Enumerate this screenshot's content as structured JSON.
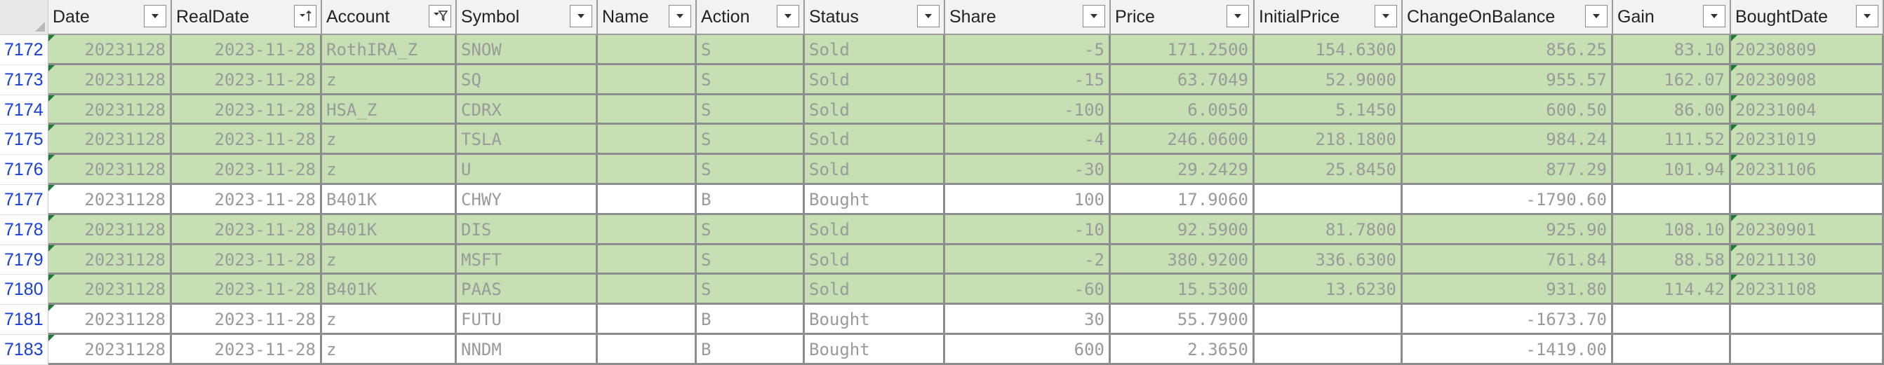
{
  "columns": [
    {
      "label": "Date",
      "filter": "dropdown"
    },
    {
      "label": "RealDate",
      "filter": "sort-asc"
    },
    {
      "label": "Account",
      "filter": "filtered"
    },
    {
      "label": "Symbol",
      "filter": "dropdown"
    },
    {
      "label": "Name",
      "filter": "dropdown"
    },
    {
      "label": "Action",
      "filter": "dropdown"
    },
    {
      "label": "Status",
      "filter": "dropdown"
    },
    {
      "label": "Share",
      "filter": "dropdown"
    },
    {
      "label": "Price",
      "filter": "dropdown"
    },
    {
      "label": "InitialPrice",
      "filter": "dropdown"
    },
    {
      "label": "ChangeOnBalance",
      "filter": "dropdown"
    },
    {
      "label": "Gain",
      "filter": "dropdown"
    },
    {
      "label": "BoughtDate",
      "filter": "dropdown"
    }
  ],
  "rows": [
    {
      "num": "7172",
      "fill": "green",
      "cells": [
        "20231128",
        "2023-11-28",
        "RothIRA_Z",
        "SNOW",
        "",
        "S",
        "Sold",
        "-5",
        "171.2500",
        "154.6300",
        "856.25",
        "83.10",
        "20230809"
      ]
    },
    {
      "num": "7173",
      "fill": "green",
      "cells": [
        "20231128",
        "2023-11-28",
        "z",
        "SQ",
        "",
        "S",
        "Sold",
        "-15",
        "63.7049",
        "52.9000",
        "955.57",
        "162.07",
        "20230908"
      ]
    },
    {
      "num": "7174",
      "fill": "green",
      "cells": [
        "20231128",
        "2023-11-28",
        "HSA_Z",
        "CDRX",
        "",
        "S",
        "Sold",
        "-100",
        "6.0050",
        "5.1450",
        "600.50",
        "86.00",
        "20231004"
      ]
    },
    {
      "num": "7175",
      "fill": "green",
      "cells": [
        "20231128",
        "2023-11-28",
        "z",
        "TSLA",
        "",
        "S",
        "Sold",
        "-4",
        "246.0600",
        "218.1800",
        "984.24",
        "111.52",
        "20231019"
      ]
    },
    {
      "num": "7176",
      "fill": "green",
      "cells": [
        "20231128",
        "2023-11-28",
        "z",
        "U",
        "",
        "S",
        "Sold",
        "-30",
        "29.2429",
        "25.8450",
        "877.29",
        "101.94",
        "20231106"
      ]
    },
    {
      "num": "7177",
      "fill": "white",
      "cells": [
        "20231128",
        "2023-11-28",
        "B401K",
        "CHWY",
        "",
        "B",
        "Bought",
        "100",
        "17.9060",
        "",
        "-1790.60",
        "",
        ""
      ]
    },
    {
      "num": "7178",
      "fill": "green",
      "cells": [
        "20231128",
        "2023-11-28",
        "B401K",
        "DIS",
        "",
        "S",
        "Sold",
        "-10",
        "92.5900",
        "81.7800",
        "925.90",
        "108.10",
        "20230901"
      ]
    },
    {
      "num": "7179",
      "fill": "green",
      "cells": [
        "20231128",
        "2023-11-28",
        "z",
        "MSFT",
        "",
        "S",
        "Sold",
        "-2",
        "380.9200",
        "336.6300",
        "761.84",
        "88.58",
        "20211130"
      ]
    },
    {
      "num": "7180",
      "fill": "green",
      "cells": [
        "20231128",
        "2023-11-28",
        "B401K",
        "PAAS",
        "",
        "S",
        "Sold",
        "-60",
        "15.5300",
        "13.6230",
        "931.80",
        "114.42",
        "20231108"
      ]
    },
    {
      "num": "7181",
      "fill": "white",
      "cells": [
        "20231128",
        "2023-11-28",
        "z",
        "FUTU",
        "",
        "B",
        "Bought",
        "30",
        "55.7900",
        "",
        "-1673.70",
        "",
        ""
      ]
    },
    {
      "num": "7183",
      "fill": "white",
      "cells": [
        "20231128",
        "2023-11-28",
        "z",
        "NNDM",
        "",
        "B",
        "Bought",
        "600",
        "2.3650",
        "",
        "-1419.00",
        "",
        ""
      ]
    }
  ],
  "colors": {
    "green_fill": "#c6e0b4",
    "row_number": "#1a3fd6",
    "error_indicator": "#1f7a3a"
  }
}
